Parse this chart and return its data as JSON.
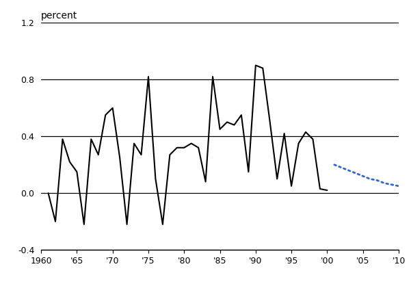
{
  "ylabel": "percent",
  "xlim": [
    1960,
    2010
  ],
  "ylim": [
    -0.4,
    1.2
  ],
  "yticks": [
    -0.4,
    0.0,
    0.4,
    0.8,
    1.2
  ],
  "xticks": [
    1960,
    1965,
    1970,
    1975,
    1980,
    1985,
    1990,
    1995,
    2000,
    2005,
    2010
  ],
  "xticklabels": [
    "1960",
    "'65",
    "'70",
    "'75",
    "'80",
    "'85",
    "'90",
    "'95",
    "'00",
    "'05",
    "'10"
  ],
  "solid_x": [
    1961,
    1962,
    1963,
    1964,
    1965,
    1966,
    1967,
    1968,
    1969,
    1970,
    1971,
    1972,
    1973,
    1974,
    1975,
    1976,
    1977,
    1978,
    1979,
    1980,
    1981,
    1982,
    1983,
    1984,
    1985,
    1986,
    1987,
    1988,
    1989,
    1990,
    1991,
    1992,
    1993,
    1994,
    1995,
    1996,
    1997,
    1998,
    1999,
    2000
  ],
  "solid_y": [
    0.0,
    -0.2,
    0.38,
    0.22,
    0.15,
    -0.22,
    0.38,
    0.27,
    0.55,
    0.6,
    0.25,
    -0.22,
    0.35,
    0.27,
    0.82,
    0.1,
    -0.22,
    0.27,
    0.32,
    0.32,
    0.35,
    0.32,
    0.08,
    0.82,
    0.45,
    0.5,
    0.48,
    0.55,
    0.15,
    0.9,
    0.88,
    0.5,
    0.1,
    0.42,
    0.05,
    0.35,
    0.43,
    0.38,
    0.03,
    0.02
  ],
  "dotted_x": [
    2001,
    2002,
    2003,
    2004,
    2005,
    2006,
    2007,
    2008,
    2009,
    2010
  ],
  "dotted_y": [
    0.2,
    0.18,
    0.16,
    0.14,
    0.12,
    0.1,
    0.09,
    0.07,
    0.06,
    0.05
  ],
  "solid_color": "#000000",
  "dotted_color": "#3366CC",
  "background_color": "#ffffff",
  "grid_color": "#000000",
  "linewidth": 1.5,
  "dotted_linewidth": 2.0,
  "fontsize_ticks": 9,
  "fontsize_ylabel": 10
}
